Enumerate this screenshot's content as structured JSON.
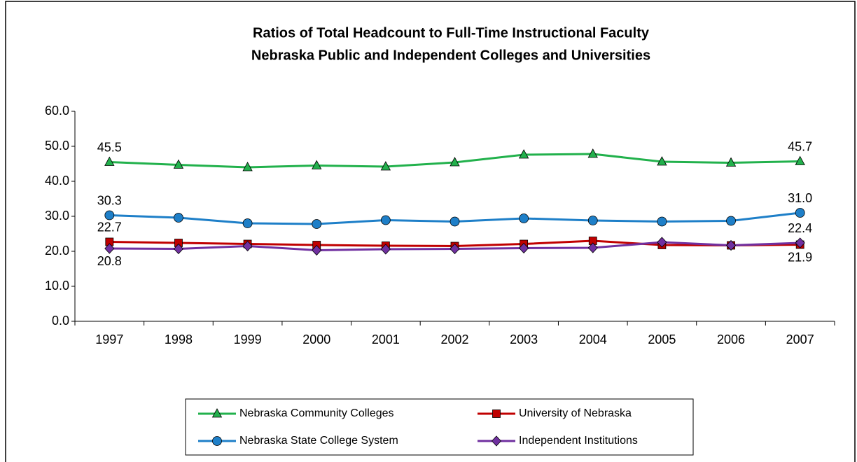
{
  "chart_data": {
    "type": "line",
    "title": "Ratios of Total Headcount to Full-Time Instructional Faculty",
    "subtitle": "Nebraska Public and Independent Colleges and Universities",
    "categories": [
      "1997",
      "1998",
      "1999",
      "2000",
      "2001",
      "2002",
      "2003",
      "2004",
      "2005",
      "2006",
      "2007"
    ],
    "ylim": [
      0,
      60
    ],
    "yticks": [
      {
        "value": 0,
        "label": "0.0"
      },
      {
        "value": 10,
        "label": "10.0"
      },
      {
        "value": 20,
        "label": "20.0"
      },
      {
        "value": 30,
        "label": "30.0"
      },
      {
        "value": 40,
        "label": "40.0"
      },
      {
        "value": 50,
        "label": "50.0"
      },
      {
        "value": 60,
        "label": "60.0"
      }
    ],
    "grid": false,
    "legend": "bottom",
    "series": [
      {
        "name": "Nebraska Community Colleges",
        "color": "#22b14c",
        "marker": "triangle",
        "values": [
          45.5,
          44.7,
          44.0,
          44.5,
          44.2,
          45.4,
          47.6,
          47.8,
          45.6,
          45.3,
          45.7
        ],
        "value_labels": [
          "45.5",
          null,
          null,
          null,
          null,
          null,
          null,
          null,
          null,
          null,
          "45.7"
        ]
      },
      {
        "name": "University of Nebraska",
        "color": "#c00000",
        "marker": "square",
        "values": [
          22.7,
          22.4,
          22.1,
          21.8,
          21.6,
          21.5,
          22.1,
          23.0,
          21.8,
          21.7,
          21.9
        ],
        "value_labels": [
          "22.7",
          null,
          null,
          null,
          null,
          null,
          null,
          null,
          null,
          null,
          "21.9"
        ]
      },
      {
        "name": "Nebraska State College System",
        "color": "#1e7fc8",
        "marker": "circle",
        "values": [
          30.3,
          29.6,
          28.0,
          27.8,
          28.9,
          28.5,
          29.4,
          28.8,
          28.5,
          28.7,
          31.0
        ],
        "value_labels": [
          "30.3",
          null,
          null,
          null,
          null,
          null,
          null,
          null,
          null,
          null,
          "31.0"
        ]
      },
      {
        "name": "Independent Institutions",
        "color": "#7030a0",
        "marker": "diamond",
        "values": [
          20.8,
          20.7,
          21.5,
          20.3,
          20.6,
          20.7,
          20.9,
          21.0,
          22.6,
          21.7,
          22.4
        ],
        "value_labels": [
          "20.8",
          null,
          null,
          null,
          null,
          null,
          null,
          null,
          null,
          null,
          "22.4"
        ]
      }
    ]
  }
}
